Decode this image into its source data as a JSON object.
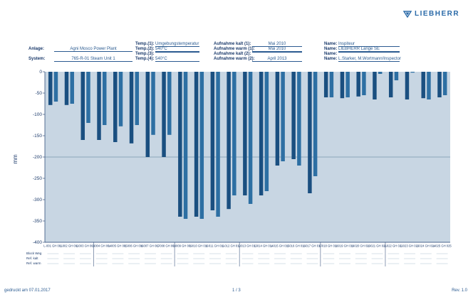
{
  "brand": {
    "name": "LIEBHERR",
    "accent": "#2a6aa8"
  },
  "header": {
    "anlage_label": "Anlage:",
    "anlage_value": "Agni Mosco Power Plant",
    "system_label": "System:",
    "system_value": "765-R-01 Steam Unit 1",
    "temp1_label": "Temp.(1):",
    "temp1_value": "Umgebungstemperatur",
    "temp2_label": "Temp.(2):",
    "temp2_value": "540°C",
    "temp3_label": "Temp.(3):",
    "temp3_value": "",
    "temp4_label": "Temp.(4):",
    "temp4_value": "540°C",
    "aufn1_label": "Aufnahme kalt (1):",
    "aufn1_value": "Mai 2010",
    "aufn2_label": "Aufnahme warm (1):",
    "aufn2_value": "Mai 2010",
    "aufn3_label": "Aufnahme kalt (2):",
    "aufn3_value": "",
    "aufn4_label": "Aufnahme warm (2):",
    "aufn4_value": "April 2013",
    "name1_label": "Name:",
    "name1_value": "Inspiteur",
    "name2_label": "Name:",
    "name2_value": "LIEBHERR Lange SE",
    "name3_label": "Name:",
    "name3_value": "",
    "name4_label": "Name:",
    "name4_value": "L.Starker, M.Wortmann/Inspector"
  },
  "footer": {
    "left": "gedruckt am 07.01.2017",
    "center": "1 / 3",
    "right": "Rev. 1.0"
  },
  "table_row_labels": [
    "Block Weg",
    "Ref. kalt",
    "Ref. warm"
  ],
  "chart_data": {
    "type": "bar",
    "title": "",
    "xlabel": "",
    "ylabel": "mm",
    "ylim": [
      -400,
      0
    ],
    "yticks": [
      "0",
      "-50",
      "-100",
      "-150",
      "-200",
      "-250",
      "-300",
      "-350",
      "-400"
    ],
    "ytick_values": [
      0,
      -50,
      -100,
      -150,
      -200,
      -250,
      -300,
      -350,
      -400
    ],
    "reference_line": -200,
    "colors": {
      "plot_bg": "#c8d6e3",
      "series_a": "#1a4f80",
      "series_b": "#2d6fa3",
      "ref_line": "#7a95ad"
    },
    "groups": [
      {
        "label": "L-001 GH 001",
        "values": [
          -78,
          -70
        ]
      },
      {
        "label": "L-002 GH 002",
        "values": [
          -78,
          -75
        ]
      },
      {
        "label": "L-003 GH 003",
        "values": [
          -160,
          -120
        ]
      },
      {
        "label": "L-004 GH 004",
        "values": [
          -160,
          -125
        ]
      },
      {
        "label": "L-005 GH 005",
        "values": [
          -165,
          -128
        ]
      },
      {
        "label": "L-006 GH 006",
        "values": [
          -168,
          -125
        ]
      },
      {
        "label": "L-007 GH 007",
        "values": [
          -200,
          -148
        ]
      },
      {
        "label": "L-008 GH 008",
        "values": [
          -200,
          -148
        ]
      },
      {
        "label": "L-009 GH 009",
        "values": [
          -340,
          -345
        ]
      },
      {
        "label": "L-010 GH 010",
        "values": [
          -340,
          -345
        ]
      },
      {
        "label": "L-011 GH 011",
        "values": [
          -325,
          -340
        ]
      },
      {
        "label": "L-012 GH 012",
        "values": [
          -322,
          -290
        ]
      },
      {
        "label": "L-013 GH 013",
        "values": [
          -290,
          -310
        ]
      },
      {
        "label": "L-014 GH 014",
        "values": [
          -290,
          -280
        ]
      },
      {
        "label": "L-015 GH 015",
        "values": [
          -220,
          -210
        ]
      },
      {
        "label": "L-016 GH 016",
        "values": [
          -205,
          -220
        ]
      },
      {
        "label": "L-017 GH 017",
        "values": [
          -285,
          -245
        ]
      },
      {
        "label": "L-018 GH 018",
        "values": [
          -60,
          -60
        ]
      },
      {
        "label": "L-019 GH 019",
        "values": [
          -62,
          -60
        ]
      },
      {
        "label": "L-020 GH 020",
        "values": [
          -58,
          -55
        ]
      },
      {
        "label": "L-021 GH 021",
        "values": [
          -65,
          -5
        ]
      },
      {
        "label": "L-022 GH 022",
        "values": [
          -60,
          -20
        ]
      },
      {
        "label": "L-023 GH 023",
        "values": [
          -65,
          -2
        ]
      },
      {
        "label": "L-024 GH 024",
        "values": [
          -62,
          -65
        ]
      },
      {
        "label": "L-025 GH 025",
        "values": [
          -60,
          -55
        ]
      }
    ]
  }
}
